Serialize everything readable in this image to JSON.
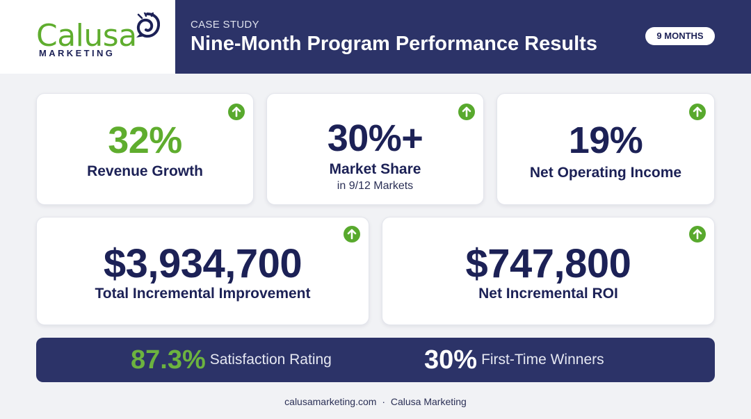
{
  "brand": {
    "logo_word": "Calusa",
    "logo_sub": "MARKETING",
    "green": "#5fad2e",
    "navy": "#2c3368"
  },
  "header": {
    "eyebrow": "CASE STUDY",
    "title": "Nine-Month Program Performance Results",
    "badge": "9 MONTHS"
  },
  "metrics_top": [
    {
      "value": "32%",
      "label": "Revenue Growth",
      "sublabel": "",
      "value_color": "#5fad2e",
      "icon": "arrow-up-icon"
    },
    {
      "value": "30%+",
      "label": "Market Share",
      "sublabel": "in 9/12 Markets",
      "value_color": "#1c2156",
      "icon": "arrow-up-icon"
    },
    {
      "value": "19%",
      "label": "Net Operating Income",
      "sublabel": "",
      "value_color": "#1c2156",
      "icon": "arrow-up-icon"
    }
  ],
  "metrics_mid": [
    {
      "value": "$3,934,700",
      "label": "Total Incremental Improvement",
      "icon": "arrow-up-icon"
    },
    {
      "value": "$747,800",
      "label": "Net Incremental ROI",
      "icon": "arrow-up-icon"
    }
  ],
  "bottom_stats": [
    {
      "value": "87.3%",
      "label": "Satisfaction Rating",
      "value_color": "#6cb33f"
    },
    {
      "value": "30%",
      "label": "First-Time Winners",
      "value_color": "#ffffff"
    }
  ],
  "footer": {
    "site": "calusamarketing.com",
    "separator": "·",
    "company": "Calusa Marketing"
  }
}
